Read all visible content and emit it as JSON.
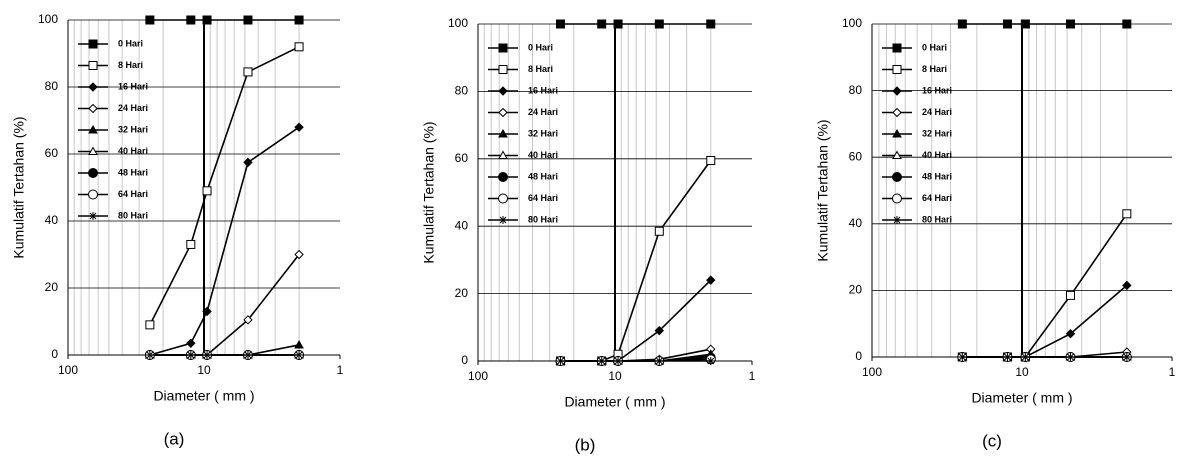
{
  "chart_data": [
    {
      "type": "line",
      "caption": "(a)",
      "xlabel": "Diameter ( mm )",
      "ylabel": "Kumulatif  Tertahan  (%)",
      "x": [
        25,
        12.5,
        9.5,
        4.75,
        2
      ],
      "xlog": true,
      "xlim": [
        100,
        1
      ],
      "xticks": [
        100,
        10,
        1
      ],
      "xgrid_minor": [
        90,
        80,
        70,
        60,
        50,
        40,
        30,
        20,
        9,
        8,
        7,
        6,
        5,
        4,
        3,
        2
      ],
      "ylim": [
        0,
        100
      ],
      "yticks": [
        0,
        20,
        40,
        60,
        80,
        100
      ],
      "grid": true,
      "reference_x": 10,
      "legend": "upper left",
      "series": [
        {
          "name": "0 Hari",
          "color": "#000000",
          "marker": "square-filled",
          "values": [
            100,
            100,
            100,
            100,
            100
          ]
        },
        {
          "name": "8 Hari",
          "color": "#000000",
          "marker": "square-open",
          "values": [
            9,
            33,
            49,
            84.5,
            92
          ]
        },
        {
          "name": "16 Hari",
          "color": "#000000",
          "marker": "diamond-filled",
          "values": [
            0,
            3.5,
            13,
            57.5,
            68
          ]
        },
        {
          "name": "24 Hari",
          "color": "#000000",
          "marker": "diamond-open",
          "values": [
            0,
            0,
            0,
            10.5,
            30
          ]
        },
        {
          "name": "32 Hari",
          "color": "#000000",
          "marker": "triangle-filled",
          "values": [
            0,
            0,
            0,
            0,
            3
          ]
        },
        {
          "name": "40 Hari",
          "color": "#000000",
          "marker": "triangle-open",
          "values": [
            0,
            0,
            0,
            0,
            0
          ]
        },
        {
          "name": "48 Hari",
          "color": "#000000",
          "marker": "circle-filled",
          "values": [
            0,
            0,
            0,
            0,
            0
          ]
        },
        {
          "name": "64 Hari",
          "color": "#000000",
          "marker": "circle-open",
          "values": [
            0,
            0,
            0,
            0,
            0
          ]
        },
        {
          "name": "80 Hari",
          "color": "#000000",
          "marker": "asterisk",
          "values": [
            0,
            0,
            0,
            0,
            0
          ]
        }
      ]
    },
    {
      "type": "line",
      "caption": "(b)",
      "xlabel": "Diameter ( mm )",
      "ylabel": "Kumulatif  Tertahan  (%)",
      "x": [
        25,
        12.5,
        9.5,
        4.75,
        2
      ],
      "xlog": true,
      "xlim": [
        100,
        1
      ],
      "xticks": [
        100,
        10,
        1
      ],
      "xgrid_minor": [
        90,
        80,
        70,
        60,
        50,
        40,
        30,
        20,
        9,
        8,
        7,
        6,
        5,
        4,
        3,
        2
      ],
      "ylim": [
        0,
        100
      ],
      "yticks": [
        0,
        20,
        40,
        60,
        80,
        100
      ],
      "grid": true,
      "reference_x": 10,
      "legend": "upper left",
      "series": [
        {
          "name": "0 Hari",
          "color": "#000000",
          "marker": "square-filled",
          "values": [
            100,
            100,
            100,
            100,
            100
          ]
        },
        {
          "name": "8 Hari",
          "color": "#000000",
          "marker": "square-open",
          "values": [
            0,
            0,
            2,
            38.5,
            59.5
          ]
        },
        {
          "name": "16 Hari",
          "color": "#000000",
          "marker": "diamond-filled",
          "values": [
            0,
            0,
            0,
            9,
            24
          ]
        },
        {
          "name": "24 Hari",
          "color": "#000000",
          "marker": "diamond-open",
          "values": [
            0,
            0,
            0,
            0.5,
            3.5
          ]
        },
        {
          "name": "32 Hari",
          "color": "#000000",
          "marker": "triangle-filled",
          "values": [
            0,
            0,
            0,
            0,
            2
          ]
        },
        {
          "name": "40 Hari",
          "color": "#000000",
          "marker": "triangle-open",
          "values": [
            0,
            0,
            0,
            0,
            1.5
          ]
        },
        {
          "name": "48 Hari",
          "color": "#000000",
          "marker": "circle-filled",
          "values": [
            0,
            0,
            0,
            0,
            1
          ]
        },
        {
          "name": "64 Hari",
          "color": "#000000",
          "marker": "circle-open",
          "values": [
            0,
            0,
            0,
            0,
            0.5
          ]
        },
        {
          "name": "80 Hari",
          "color": "#000000",
          "marker": "asterisk",
          "values": [
            0,
            0,
            0,
            0,
            0
          ]
        }
      ]
    },
    {
      "type": "line",
      "caption": "(c)",
      "xlabel": "Diameter ( mm )",
      "ylabel": "Kumulatif  Tertahan  (%)",
      "x": [
        25,
        12.5,
        9.5,
        4.75,
        2
      ],
      "xlog": true,
      "xlim": [
        100,
        1
      ],
      "xticks": [
        100,
        10,
        1
      ],
      "xgrid_minor": [
        90,
        80,
        70,
        60,
        50,
        40,
        30,
        20,
        9,
        8,
        7,
        6,
        5,
        4,
        3,
        2
      ],
      "ylim": [
        0,
        100
      ],
      "yticks": [
        0,
        20,
        40,
        60,
        80,
        100
      ],
      "grid": true,
      "reference_x": 10,
      "legend": "upper left",
      "series": [
        {
          "name": "0 Hari",
          "color": "#000000",
          "marker": "square-filled",
          "values": [
            100,
            100,
            100,
            100,
            100
          ]
        },
        {
          "name": "8 Hari",
          "color": "#000000",
          "marker": "square-open",
          "values": [
            0,
            0,
            0,
            18.5,
            43
          ]
        },
        {
          "name": "16 Hari",
          "color": "#000000",
          "marker": "diamond-filled",
          "values": [
            0,
            0,
            0,
            7,
            21.5
          ]
        },
        {
          "name": "24 Hari",
          "color": "#000000",
          "marker": "diamond-open",
          "values": [
            0,
            0,
            0,
            0,
            1.5
          ]
        },
        {
          "name": "32 Hari",
          "color": "#000000",
          "marker": "triangle-filled",
          "values": [
            0,
            0,
            0,
            0,
            0
          ]
        },
        {
          "name": "40 Hari",
          "color": "#000000",
          "marker": "triangle-open",
          "values": [
            0,
            0,
            0,
            0,
            0
          ]
        },
        {
          "name": "48 Hari",
          "color": "#000000",
          "marker": "circle-filled",
          "values": [
            0,
            0,
            0,
            0,
            0
          ]
        },
        {
          "name": "64 Hari",
          "color": "#000000",
          "marker": "circle-open",
          "values": [
            0,
            0,
            0,
            0,
            0
          ]
        },
        {
          "name": "80 Hari",
          "color": "#000000",
          "marker": "asterisk",
          "values": [
            0,
            0,
            0,
            0,
            0
          ]
        }
      ]
    }
  ]
}
